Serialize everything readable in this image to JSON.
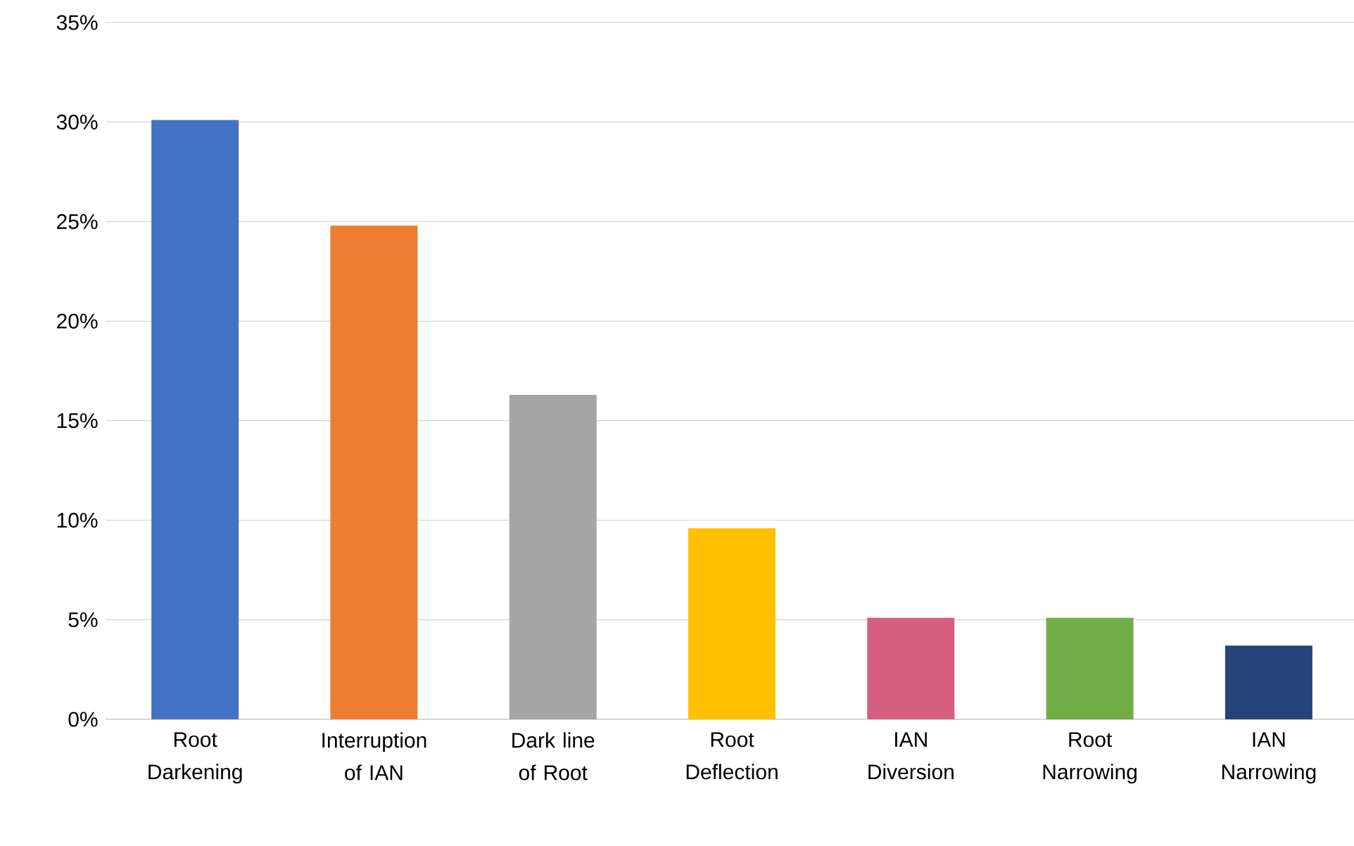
{
  "chart_data": {
    "type": "bar",
    "categories": [
      "Root Darkening",
      "Interruption of IAN",
      "Dark line of Root",
      "Root Deflection",
      "IAN Diversion",
      "Root Narrowing",
      "IAN Narrowing"
    ],
    "values": [
      30.1,
      24.8,
      16.3,
      9.6,
      5.1,
      5.1,
      3.7
    ],
    "colors": [
      "#4472c4",
      "#ed7d31",
      "#a5a5a5",
      "#ffc000",
      "#d45f80",
      "#70ad47",
      "#264478"
    ],
    "ylim": [
      0,
      35
    ],
    "yticks": [
      {
        "value": 0,
        "label": "0%"
      },
      {
        "value": 5,
        "label": "5%"
      },
      {
        "value": 10,
        "label": "10%"
      },
      {
        "value": 15,
        "label": "15%"
      },
      {
        "value": 20,
        "label": "20%"
      },
      {
        "value": 25,
        "label": "25%"
      },
      {
        "value": 30,
        "label": "30%"
      },
      {
        "value": 35,
        "label": "35%"
      }
    ],
    "grid": "y"
  }
}
